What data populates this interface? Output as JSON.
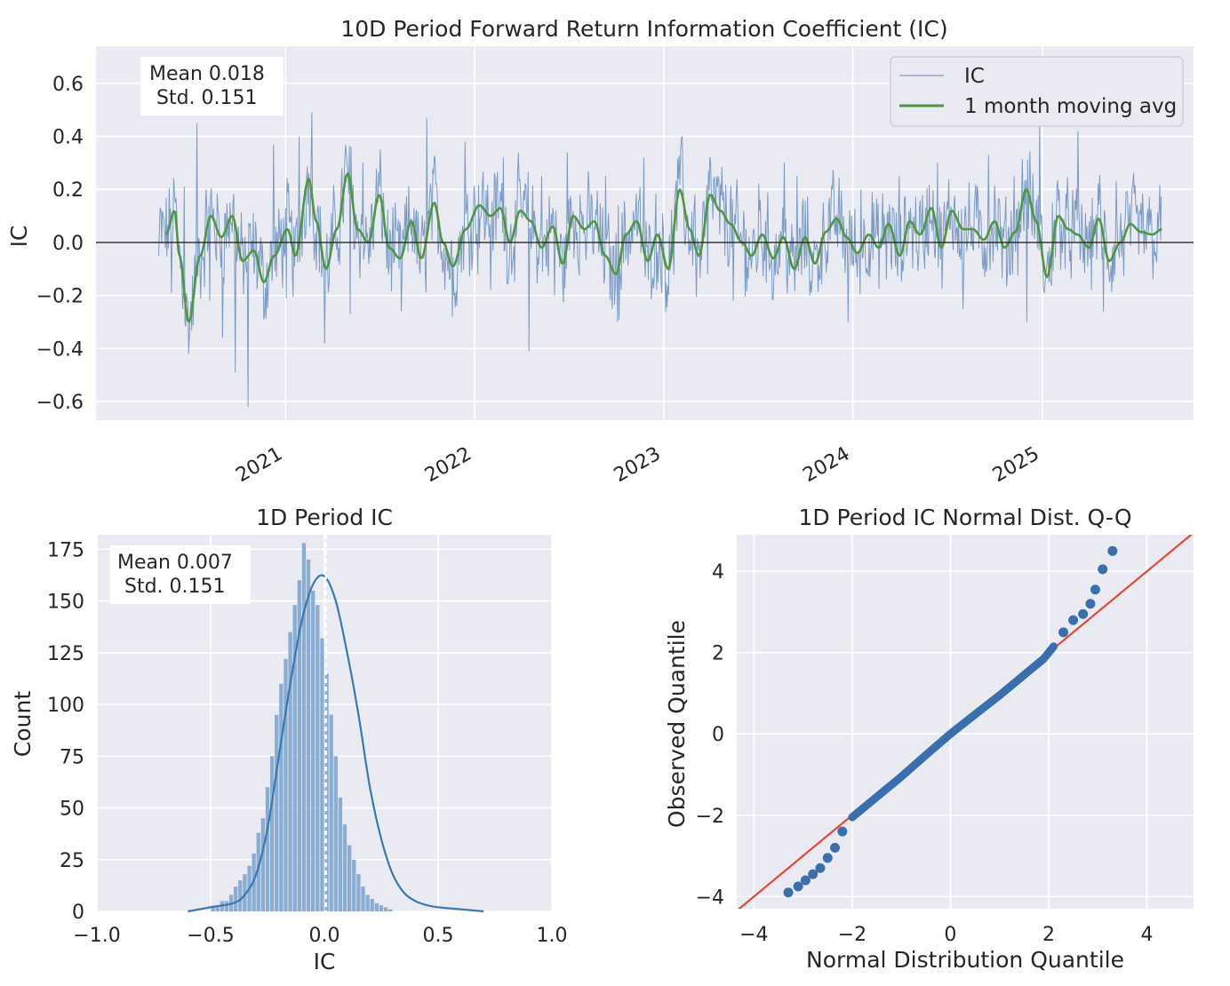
{
  "chart_data": [
    {
      "type": "line",
      "title": "10D Period Forward Return Information Coefficient (IC)",
      "ylabel": "IC",
      "xlabel": "",
      "xlim": [
        "2020-01-01",
        "2025-10-20"
      ],
      "ylim": [
        -0.67,
        0.74
      ],
      "yticks": [
        "−0.6",
        "−0.4",
        "−0.2",
        "0.0",
        "0.2",
        "0.4",
        "0.6"
      ],
      "ytick_values": [
        -0.6,
        -0.4,
        -0.2,
        0.0,
        0.2,
        0.4,
        0.6
      ],
      "xticks": [
        "2021",
        "2022",
        "2023",
        "2024",
        "2025"
      ],
      "xtick_values": [
        "2021-01-01",
        "2022-01-01",
        "2023-01-01",
        "2024-01-01",
        "2025-01-01"
      ],
      "stats_text": [
        "Mean 0.018",
        "Std. 0.151"
      ],
      "legend": {
        "position": "top-right",
        "entries": [
          "IC",
          "1 month moving avg"
        ]
      },
      "colors": {
        "ic": "#7b9bc6",
        "moving_avg": "#4f9642",
        "zero_line": "#222222"
      },
      "series": [
        {
          "name": "IC",
          "x_start": "2020-05-01",
          "x_end": "2025-08-20",
          "frequency": "daily (trading days)",
          "y_min": -0.62,
          "y_max": 0.49,
          "values_sample": [
            -0.05,
            -0.19,
            0.21,
            0.45,
            -0.22,
            -0.36,
            -0.49,
            -0.62,
            0.02,
            0.37,
            -0.21,
            0.4,
            0.49,
            -0.38,
            0.02,
            -0.27,
            0.3,
            0.17,
            -0.12,
            -0.26,
            0.13,
            0.47,
            0.08,
            -0.28,
            0.38,
            -0.12,
            -0.18,
            0.32,
            0.02,
            -0.41,
            0.25,
            -0.2,
            0.34,
            0.18,
            -0.03,
            0.25,
            0.14,
            0.0,
            0.32,
            -0.18,
            0.03,
            0.4,
            0.18,
            -0.12,
            0.22,
            -0.22,
            0.05,
            0.22,
            -0.05,
            0.3,
            0.25,
            -0.2,
            0.06,
            0.1,
            -0.3,
            0.2,
            0.15,
            -0.14,
            0.25,
            0.06,
            -0.1,
            0.3,
            0.05,
            -0.25,
            0.22,
            0.33,
            0.06,
            0.25,
            -0.3,
            0.45,
            0.15,
            -0.1,
            0.42,
            0.1,
            -0.26,
            0.23,
            0.08,
            0.03
          ]
        },
        {
          "name": "1 month moving avg",
          "points": [
            [
              "2020-05-15",
              0.03
            ],
            [
              "2020-06-01",
              0.12
            ],
            [
              "2020-06-10",
              -0.05
            ],
            [
              "2020-06-28",
              -0.3
            ],
            [
              "2020-07-20",
              -0.05
            ],
            [
              "2020-08-10",
              0.1
            ],
            [
              "2020-08-30",
              0.02
            ],
            [
              "2020-09-20",
              0.1
            ],
            [
              "2020-10-10",
              -0.07
            ],
            [
              "2020-11-01",
              -0.03
            ],
            [
              "2020-11-20",
              -0.15
            ],
            [
              "2020-12-10",
              -0.05
            ],
            [
              "2021-01-05",
              0.05
            ],
            [
              "2021-01-20",
              -0.05
            ],
            [
              "2021-02-15",
              0.24
            ],
            [
              "2021-03-01",
              0.08
            ],
            [
              "2021-03-20",
              -0.1
            ],
            [
              "2021-04-10",
              0.05
            ],
            [
              "2021-05-01",
              0.26
            ],
            [
              "2021-05-20",
              0.05
            ],
            [
              "2021-06-10",
              0.0
            ],
            [
              "2021-07-01",
              0.18
            ],
            [
              "2021-07-20",
              -0.02
            ],
            [
              "2021-08-10",
              -0.06
            ],
            [
              "2021-09-01",
              0.08
            ],
            [
              "2021-09-20",
              -0.06
            ],
            [
              "2021-10-15",
              0.15
            ],
            [
              "2021-11-01",
              0.0
            ],
            [
              "2021-11-20",
              -0.09
            ],
            [
              "2021-12-15",
              0.05
            ],
            [
              "2022-01-10",
              0.14
            ],
            [
              "2022-02-01",
              0.1
            ],
            [
              "2022-02-20",
              0.13
            ],
            [
              "2022-03-10",
              0.0
            ],
            [
              "2022-03-30",
              0.12
            ],
            [
              "2022-04-20",
              0.08
            ],
            [
              "2022-05-10",
              -0.02
            ],
            [
              "2022-06-01",
              0.06
            ],
            [
              "2022-06-20",
              -0.08
            ],
            [
              "2022-07-10",
              0.1
            ],
            [
              "2022-08-01",
              0.05
            ],
            [
              "2022-08-20",
              0.08
            ],
            [
              "2022-09-10",
              -0.05
            ],
            [
              "2022-10-01",
              -0.12
            ],
            [
              "2022-10-20",
              0.03
            ],
            [
              "2022-11-10",
              0.08
            ],
            [
              "2022-12-01",
              -0.07
            ],
            [
              "2022-12-20",
              0.03
            ],
            [
              "2023-01-10",
              -0.1
            ],
            [
              "2023-02-01",
              0.2
            ],
            [
              "2023-02-20",
              0.05
            ],
            [
              "2023-03-10",
              -0.05
            ],
            [
              "2023-04-01",
              0.18
            ],
            [
              "2023-04-20",
              0.12
            ],
            [
              "2023-05-10",
              0.07
            ],
            [
              "2023-06-01",
              0.0
            ],
            [
              "2023-06-20",
              -0.05
            ],
            [
              "2023-07-10",
              0.03
            ],
            [
              "2023-08-01",
              -0.06
            ],
            [
              "2023-08-20",
              0.02
            ],
            [
              "2023-09-10",
              -0.1
            ],
            [
              "2023-10-01",
              0.02
            ],
            [
              "2023-10-20",
              -0.08
            ],
            [
              "2023-11-10",
              0.04
            ],
            [
              "2023-12-01",
              0.09
            ],
            [
              "2023-12-20",
              0.02
            ],
            [
              "2024-01-10",
              -0.04
            ],
            [
              "2024-02-01",
              0.03
            ],
            [
              "2024-02-20",
              -0.02
            ],
            [
              "2024-03-10",
              0.07
            ],
            [
              "2024-04-01",
              -0.05
            ],
            [
              "2024-04-20",
              0.08
            ],
            [
              "2024-05-10",
              0.03
            ],
            [
              "2024-06-01",
              0.13
            ],
            [
              "2024-06-20",
              -0.02
            ],
            [
              "2024-07-10",
              0.12
            ],
            [
              "2024-08-01",
              0.05
            ],
            [
              "2024-08-20",
              0.05
            ],
            [
              "2024-09-10",
              0.01
            ],
            [
              "2024-10-01",
              0.08
            ],
            [
              "2024-10-20",
              -0.02
            ],
            [
              "2024-11-10",
              0.04
            ],
            [
              "2024-12-01",
              0.2
            ],
            [
              "2024-12-20",
              0.08
            ],
            [
              "2025-01-10",
              -0.13
            ],
            [
              "2025-02-01",
              0.1
            ],
            [
              "2025-02-20",
              0.05
            ],
            [
              "2025-03-10",
              0.03
            ],
            [
              "2025-04-01",
              -0.02
            ],
            [
              "2025-04-20",
              0.09
            ],
            [
              "2025-05-10",
              -0.07
            ],
            [
              "2025-06-01",
              0.0
            ],
            [
              "2025-06-20",
              0.07
            ],
            [
              "2025-07-10",
              0.04
            ],
            [
              "2025-08-01",
              0.03
            ],
            [
              "2025-08-20",
              0.05
            ]
          ]
        }
      ]
    },
    {
      "type": "bar",
      "title": "1D Period IC",
      "xlabel": "IC",
      "ylabel": "Count",
      "xlim": [
        -1.0,
        1.0
      ],
      "ylim": [
        0,
        182
      ],
      "xticks": [
        "−1.0",
        "−0.5",
        "0.0",
        "0.5",
        "1.0"
      ],
      "xtick_values": [
        -1.0,
        -0.5,
        0.0,
        0.5,
        1.0
      ],
      "yticks": [
        "0",
        "25",
        "50",
        "75",
        "100",
        "125",
        "150",
        "175"
      ],
      "ytick_values": [
        0,
        25,
        50,
        75,
        100,
        125,
        150,
        175
      ],
      "stats_text": [
        "Mean 0.007",
        "Std. 0.151"
      ],
      "mean_line": 0.007,
      "colors": {
        "bars": "#7ea6cf",
        "kde": "#3a78b0",
        "mean_line": "#ffffff"
      },
      "bin_edges_start": -0.5,
      "bin_width": 0.02,
      "counts": [
        2,
        2,
        5,
        5,
        8,
        12,
        15,
        18,
        22,
        28,
        38,
        45,
        60,
        75,
        95,
        110,
        122,
        135,
        148,
        160,
        178,
        170,
        155,
        148,
        132,
        115,
        95,
        75,
        55,
        42,
        32,
        25,
        18,
        12,
        8,
        6,
        4,
        3,
        2,
        1
      ],
      "kde": [
        [
          -0.6,
          0
        ],
        [
          -0.5,
          2
        ],
        [
          -0.4,
          4
        ],
        [
          -0.35,
          8
        ],
        [
          -0.3,
          18
        ],
        [
          -0.25,
          40
        ],
        [
          -0.2,
          75
        ],
        [
          -0.15,
          110
        ],
        [
          -0.1,
          140
        ],
        [
          -0.05,
          158
        ],
        [
          0.0,
          162
        ],
        [
          0.05,
          150
        ],
        [
          0.1,
          125
        ],
        [
          0.15,
          95
        ],
        [
          0.2,
          60
        ],
        [
          0.25,
          35
        ],
        [
          0.3,
          18
        ],
        [
          0.35,
          9
        ],
        [
          0.4,
          5
        ],
        [
          0.45,
          3
        ],
        [
          0.5,
          2
        ],
        [
          0.6,
          1
        ],
        [
          0.7,
          0
        ]
      ]
    },
    {
      "type": "scatter",
      "title": "1D Period IC Normal Dist. Q-Q",
      "xlabel": "Normal Distribution Quantile",
      "ylabel": "Observed Quantile",
      "xlim": [
        -4.35,
        4.95
      ],
      "ylim": [
        -4.3,
        4.9
      ],
      "xticks": [
        "−4",
        "−2",
        "0",
        "2",
        "4"
      ],
      "xtick_values": [
        -4,
        -2,
        0,
        2,
        4
      ],
      "yticks": [
        "−4",
        "−2",
        "0",
        "2",
        "4"
      ],
      "ytick_values": [
        -4,
        -2,
        0,
        2,
        4
      ],
      "reference_line": {
        "slope": 1,
        "intercept": 0
      },
      "colors": {
        "points": "#3a6fae",
        "reference_line": "#e24a33"
      },
      "quantile_curve": [
        [
          -3.3,
          -3.9
        ],
        [
          -3.1,
          -3.75
        ],
        [
          -2.95,
          -3.6
        ],
        [
          -2.8,
          -3.45
        ],
        [
          -2.65,
          -3.3
        ],
        [
          -2.5,
          -3.05
        ],
        [
          -2.35,
          -2.8
        ],
        [
          -2.2,
          -2.4
        ],
        [
          -2.0,
          -2.05
        ],
        [
          -1.5,
          -1.55
        ],
        [
          -1.0,
          -1.05
        ],
        [
          -0.5,
          -0.52
        ],
        [
          0.0,
          0.0
        ],
        [
          0.5,
          0.48
        ],
        [
          1.0,
          0.95
        ],
        [
          1.5,
          1.45
        ],
        [
          1.9,
          1.85
        ],
        [
          2.1,
          2.15
        ],
        [
          2.3,
          2.5
        ],
        [
          2.5,
          2.8
        ],
        [
          2.7,
          2.95
        ],
        [
          2.85,
          3.2
        ],
        [
          2.95,
          3.55
        ],
        [
          3.1,
          4.05
        ],
        [
          3.3,
          4.5
        ]
      ]
    }
  ]
}
